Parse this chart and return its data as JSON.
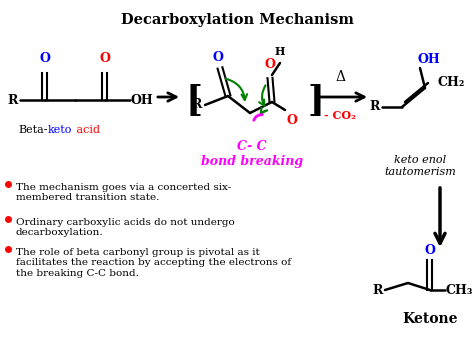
{
  "title": "Decarboxylation Mechanism",
  "title_fontsize": 11,
  "title_fontweight": "bold",
  "bg_color": "#ffffff",
  "bullet_points": [
    "The mechanism goes via a concerted six-\nmembered transition state.",
    "Ordinary carboxylic acids do not undergo\ndecarboxylation.",
    "The role of beta carbonyl group is pivotal as it\nfacilitates the reaction by accepting the electrons of\nthe breaking C-C bond."
  ],
  "bullet_color": "red",
  "label_cc": "C- C\nbond breaking",
  "label_cc_color": "magenta",
  "label_delta": "Δ",
  "label_co2": "- CO₂",
  "label_co2_color": "red",
  "label_keto_enol": "keto enol\ntautomerism",
  "label_ketone": "Ketone",
  "label_ketone_fontweight": "bold"
}
